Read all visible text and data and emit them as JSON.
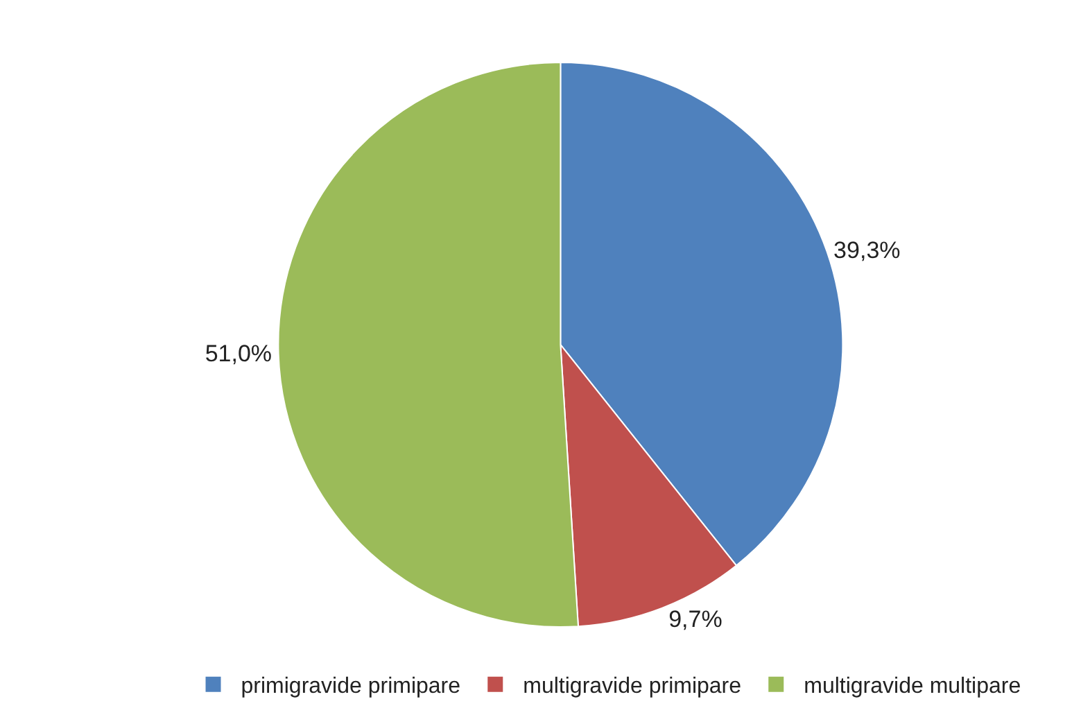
{
  "chart_data": {
    "type": "pie",
    "categories": [
      "primigravide primipare",
      "multigravide primipare",
      "multigravide multipare"
    ],
    "values": [
      39.3,
      9.7,
      51.0
    ],
    "value_labels": [
      "39,3%",
      "9,7%",
      "51,0%"
    ],
    "colors": [
      "#4f81bd",
      "#c0504d",
      "#9bbb59"
    ],
    "legend": "bottom"
  }
}
